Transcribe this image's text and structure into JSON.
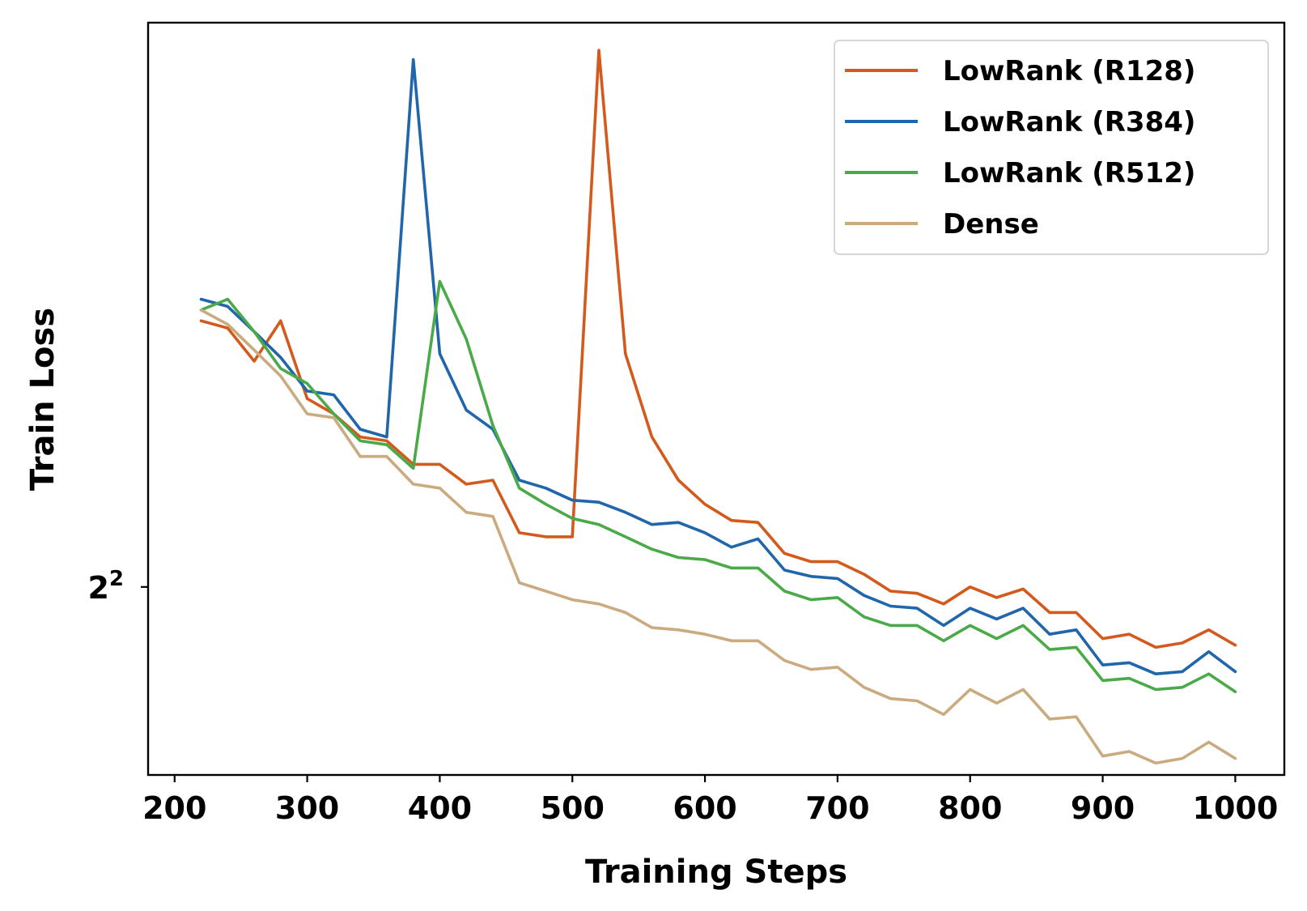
{
  "chart_data": {
    "type": "line",
    "xlabel": "Training Steps",
    "ylabel": "Train Loss",
    "y_scale": "log2",
    "xlim": [
      180,
      1037
    ],
    "ylim": [
      3.58,
      5.58
    ],
    "x_ticks": [
      {
        "value": 200,
        "label": "200"
      },
      {
        "value": 300,
        "label": "300"
      },
      {
        "value": 400,
        "label": "400"
      },
      {
        "value": 500,
        "label": "500"
      },
      {
        "value": 600,
        "label": "600"
      },
      {
        "value": 700,
        "label": "700"
      },
      {
        "value": 800,
        "label": "800"
      },
      {
        "value": 900,
        "label": "900"
      },
      {
        "value": 1000,
        "label": "1000"
      }
    ],
    "y_ticks": [
      {
        "value": 4,
        "base": "2",
        "exponent": "2"
      }
    ],
    "grid": false,
    "legend_position": "top-right",
    "x": [
      220,
      240,
      260,
      280,
      300,
      320,
      340,
      360,
      380,
      400,
      420,
      440,
      460,
      480,
      500,
      520,
      540,
      560,
      580,
      600,
      620,
      640,
      660,
      680,
      700,
      720,
      740,
      760,
      780,
      800,
      820,
      840,
      860,
      880,
      900,
      920,
      940,
      960,
      980,
      1000
    ],
    "series": [
      {
        "name": "LowRank (R128)",
        "color": "#d35a1c",
        "values": [
          4.68,
          4.66,
          4.57,
          4.68,
          4.47,
          4.43,
          4.37,
          4.36,
          4.3,
          4.3,
          4.25,
          4.26,
          4.13,
          4.12,
          4.12,
          5.49,
          4.59,
          4.37,
          4.26,
          4.2,
          4.16,
          4.155,
          4.08,
          4.06,
          4.06,
          4.03,
          3.99,
          3.985,
          3.96,
          4.0,
          3.975,
          3.995,
          3.94,
          3.94,
          3.88,
          3.89,
          3.86,
          3.87,
          3.9,
          3.865
        ]
      },
      {
        "name": "LowRank (R384)",
        "color": "#1f66aa",
        "values": [
          4.74,
          4.72,
          4.65,
          4.58,
          4.49,
          4.48,
          4.39,
          4.37,
          5.46,
          4.59,
          4.44,
          4.39,
          4.26,
          4.24,
          4.21,
          4.205,
          4.18,
          4.15,
          4.155,
          4.13,
          4.095,
          4.115,
          4.04,
          4.025,
          4.02,
          3.98,
          3.955,
          3.95,
          3.91,
          3.95,
          3.925,
          3.95,
          3.89,
          3.9,
          3.82,
          3.825,
          3.8,
          3.805,
          3.85,
          3.805
        ]
      },
      {
        "name": "LowRank (R512)",
        "color": "#4aaa48",
        "values": [
          4.71,
          4.74,
          4.65,
          4.55,
          4.51,
          4.43,
          4.36,
          4.35,
          4.29,
          4.79,
          4.63,
          4.4,
          4.24,
          4.2,
          4.165,
          4.15,
          4.12,
          4.09,
          4.07,
          4.065,
          4.045,
          4.045,
          3.99,
          3.97,
          3.975,
          3.93,
          3.91,
          3.91,
          3.875,
          3.91,
          3.88,
          3.91,
          3.855,
          3.86,
          3.785,
          3.79,
          3.765,
          3.77,
          3.8,
          3.76
        ]
      },
      {
        "name": "Dense",
        "color": "#c9ab7f",
        "values": [
          4.71,
          4.67,
          4.6,
          4.53,
          4.43,
          4.42,
          4.32,
          4.32,
          4.25,
          4.24,
          4.18,
          4.17,
          4.01,
          3.99,
          3.97,
          3.96,
          3.94,
          3.905,
          3.9,
          3.89,
          3.875,
          3.875,
          3.83,
          3.81,
          3.815,
          3.77,
          3.745,
          3.74,
          3.71,
          3.765,
          3.735,
          3.765,
          3.7,
          3.705,
          3.62,
          3.63,
          3.605,
          3.615,
          3.65,
          3.615
        ]
      }
    ]
  }
}
